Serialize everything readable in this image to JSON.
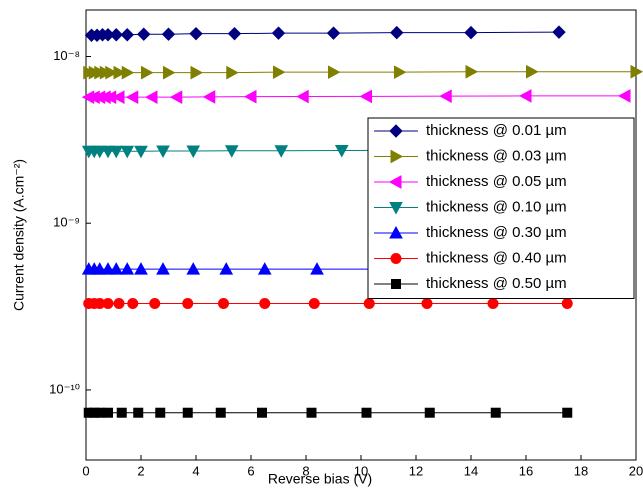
{
  "chart_data": {
    "type": "line",
    "log_y": true,
    "x_label": "Reverse bias (V)",
    "y_label": "Current density (A.cm⁻²)",
    "xlim": [
      0,
      20
    ],
    "xticks": [
      0,
      2,
      4,
      6,
      8,
      10,
      12,
      14,
      16,
      18,
      20
    ],
    "ylim": [
      3.8e-11,
      1.9e-08
    ],
    "yticks": [
      {
        "value": 1e-10,
        "label": "10⁻¹⁰"
      },
      {
        "value": 1e-09,
        "label": "10⁻⁹"
      },
      {
        "value": 1e-08,
        "label": "10⁻⁸"
      }
    ],
    "legend": "upper right",
    "series": [
      {
        "name": "thickness @ 0.01 µm",
        "color": "#000080",
        "marker": "diamond",
        "x": [
          0.2,
          0.4,
          0.6,
          0.8,
          1.1,
          1.5,
          2.1,
          3,
          4,
          5.4,
          7,
          9,
          11.3,
          14,
          17.2
        ],
        "values": [
          1.34e-08,
          1.34e-08,
          1.35e-08,
          1.35e-08,
          1.35e-08,
          1.35e-08,
          1.36e-08,
          1.36e-08,
          1.37e-08,
          1.37e-08,
          1.38e-08,
          1.38e-08,
          1.39e-08,
          1.39e-08,
          1.4e-08
        ]
      },
      {
        "name": "thickness @ 0.03 µm",
        "color": "#808000",
        "marker": "triangle-right",
        "x": [
          0.1,
          0.3,
          0.5,
          0.7,
          0.9,
          1.2,
          1.5,
          2.2,
          3,
          4,
          5.3,
          7,
          9,
          11.4,
          14,
          16.2,
          20
        ],
        "values": [
          8e-09,
          8e-09,
          8e-09,
          8e-09,
          8e-09,
          8e-09,
          8e-09,
          8e-09,
          8e-09,
          8e-09,
          8e-09,
          8.05e-09,
          8.05e-09,
          8.05e-09,
          8.1e-09,
          8.1e-09,
          8.1e-09
        ]
      },
      {
        "name": "thickness @ 0.05 µm",
        "color": "#ff00ff",
        "marker": "triangle-left",
        "x": [
          0.1,
          0.3,
          0.5,
          0.7,
          0.9,
          1.2,
          1.7,
          2.4,
          3.3,
          4.5,
          6,
          7.9,
          10.2,
          13.1,
          16,
          19.6
        ],
        "values": [
          5.7e-09,
          5.7e-09,
          5.7e-09,
          5.7e-09,
          5.7e-09,
          5.7e-09,
          5.7e-09,
          5.7e-09,
          5.7e-09,
          5.72e-09,
          5.74e-09,
          5.75e-09,
          5.76e-09,
          5.78e-09,
          5.8e-09,
          5.8e-09
        ]
      },
      {
        "name": "thickness @ 0.10 µm",
        "color": "#008080",
        "marker": "triangle-down",
        "x": [
          0.1,
          0.3,
          0.5,
          0.8,
          1.1,
          1.5,
          2,
          2.8,
          3.9,
          5.3,
          7.1,
          9.3,
          12.1,
          15.5,
          19.5
        ],
        "values": [
          2.7e-09,
          2.7e-09,
          2.7e-09,
          2.7e-09,
          2.7e-09,
          2.7e-09,
          2.7e-09,
          2.71e-09,
          2.71e-09,
          2.72e-09,
          2.72e-09,
          2.73e-09,
          2.74e-09,
          2.74e-09,
          2.75e-09
        ]
      },
      {
        "name": "thickness @ 0.30 µm",
        "color": "#0000ff",
        "marker": "triangle-up",
        "x": [
          0.1,
          0.3,
          0.5,
          0.8,
          1.1,
          1.5,
          2,
          2.8,
          3.9,
          5.1,
          6.5,
          8.4,
          10.7,
          13.2,
          16,
          19
        ],
        "values": [
          5.3e-10,
          5.3e-10,
          5.3e-10,
          5.3e-10,
          5.3e-10,
          5.3e-10,
          5.3e-10,
          5.3e-10,
          5.3e-10,
          5.3e-10,
          5.3e-10,
          5.3e-10,
          5.3e-10,
          5.3e-10,
          5.3e-10,
          5.3e-10
        ]
      },
      {
        "name": "thickness @ 0.40 µm",
        "color": "#ff0000",
        "marker": "circle",
        "x": [
          0.1,
          0.3,
          0.5,
          0.8,
          1.2,
          1.7,
          2.5,
          3.7,
          5,
          6.5,
          8.3,
          10.3,
          12.4,
          14.8,
          17.5
        ],
        "values": [
          3.3e-10,
          3.3e-10,
          3.3e-10,
          3.3e-10,
          3.3e-10,
          3.3e-10,
          3.3e-10,
          3.3e-10,
          3.3e-10,
          3.3e-10,
          3.3e-10,
          3.3e-10,
          3.3e-10,
          3.3e-10,
          3.3e-10
        ]
      },
      {
        "name": "thickness @ 0.50 µm",
        "color": "#000000",
        "marker": "square",
        "x": [
          0.1,
          0.3,
          0.5,
          0.8,
          1.3,
          1.9,
          2.7,
          3.7,
          4.9,
          6.4,
          8.2,
          10.2,
          12.5,
          14.9,
          17.5
        ],
        "values": [
          7.3e-11,
          7.3e-11,
          7.3e-11,
          7.3e-11,
          7.3e-11,
          7.3e-11,
          7.3e-11,
          7.3e-11,
          7.3e-11,
          7.3e-11,
          7.3e-11,
          7.3e-11,
          7.3e-11,
          7.3e-11,
          7.3e-11
        ]
      }
    ]
  }
}
